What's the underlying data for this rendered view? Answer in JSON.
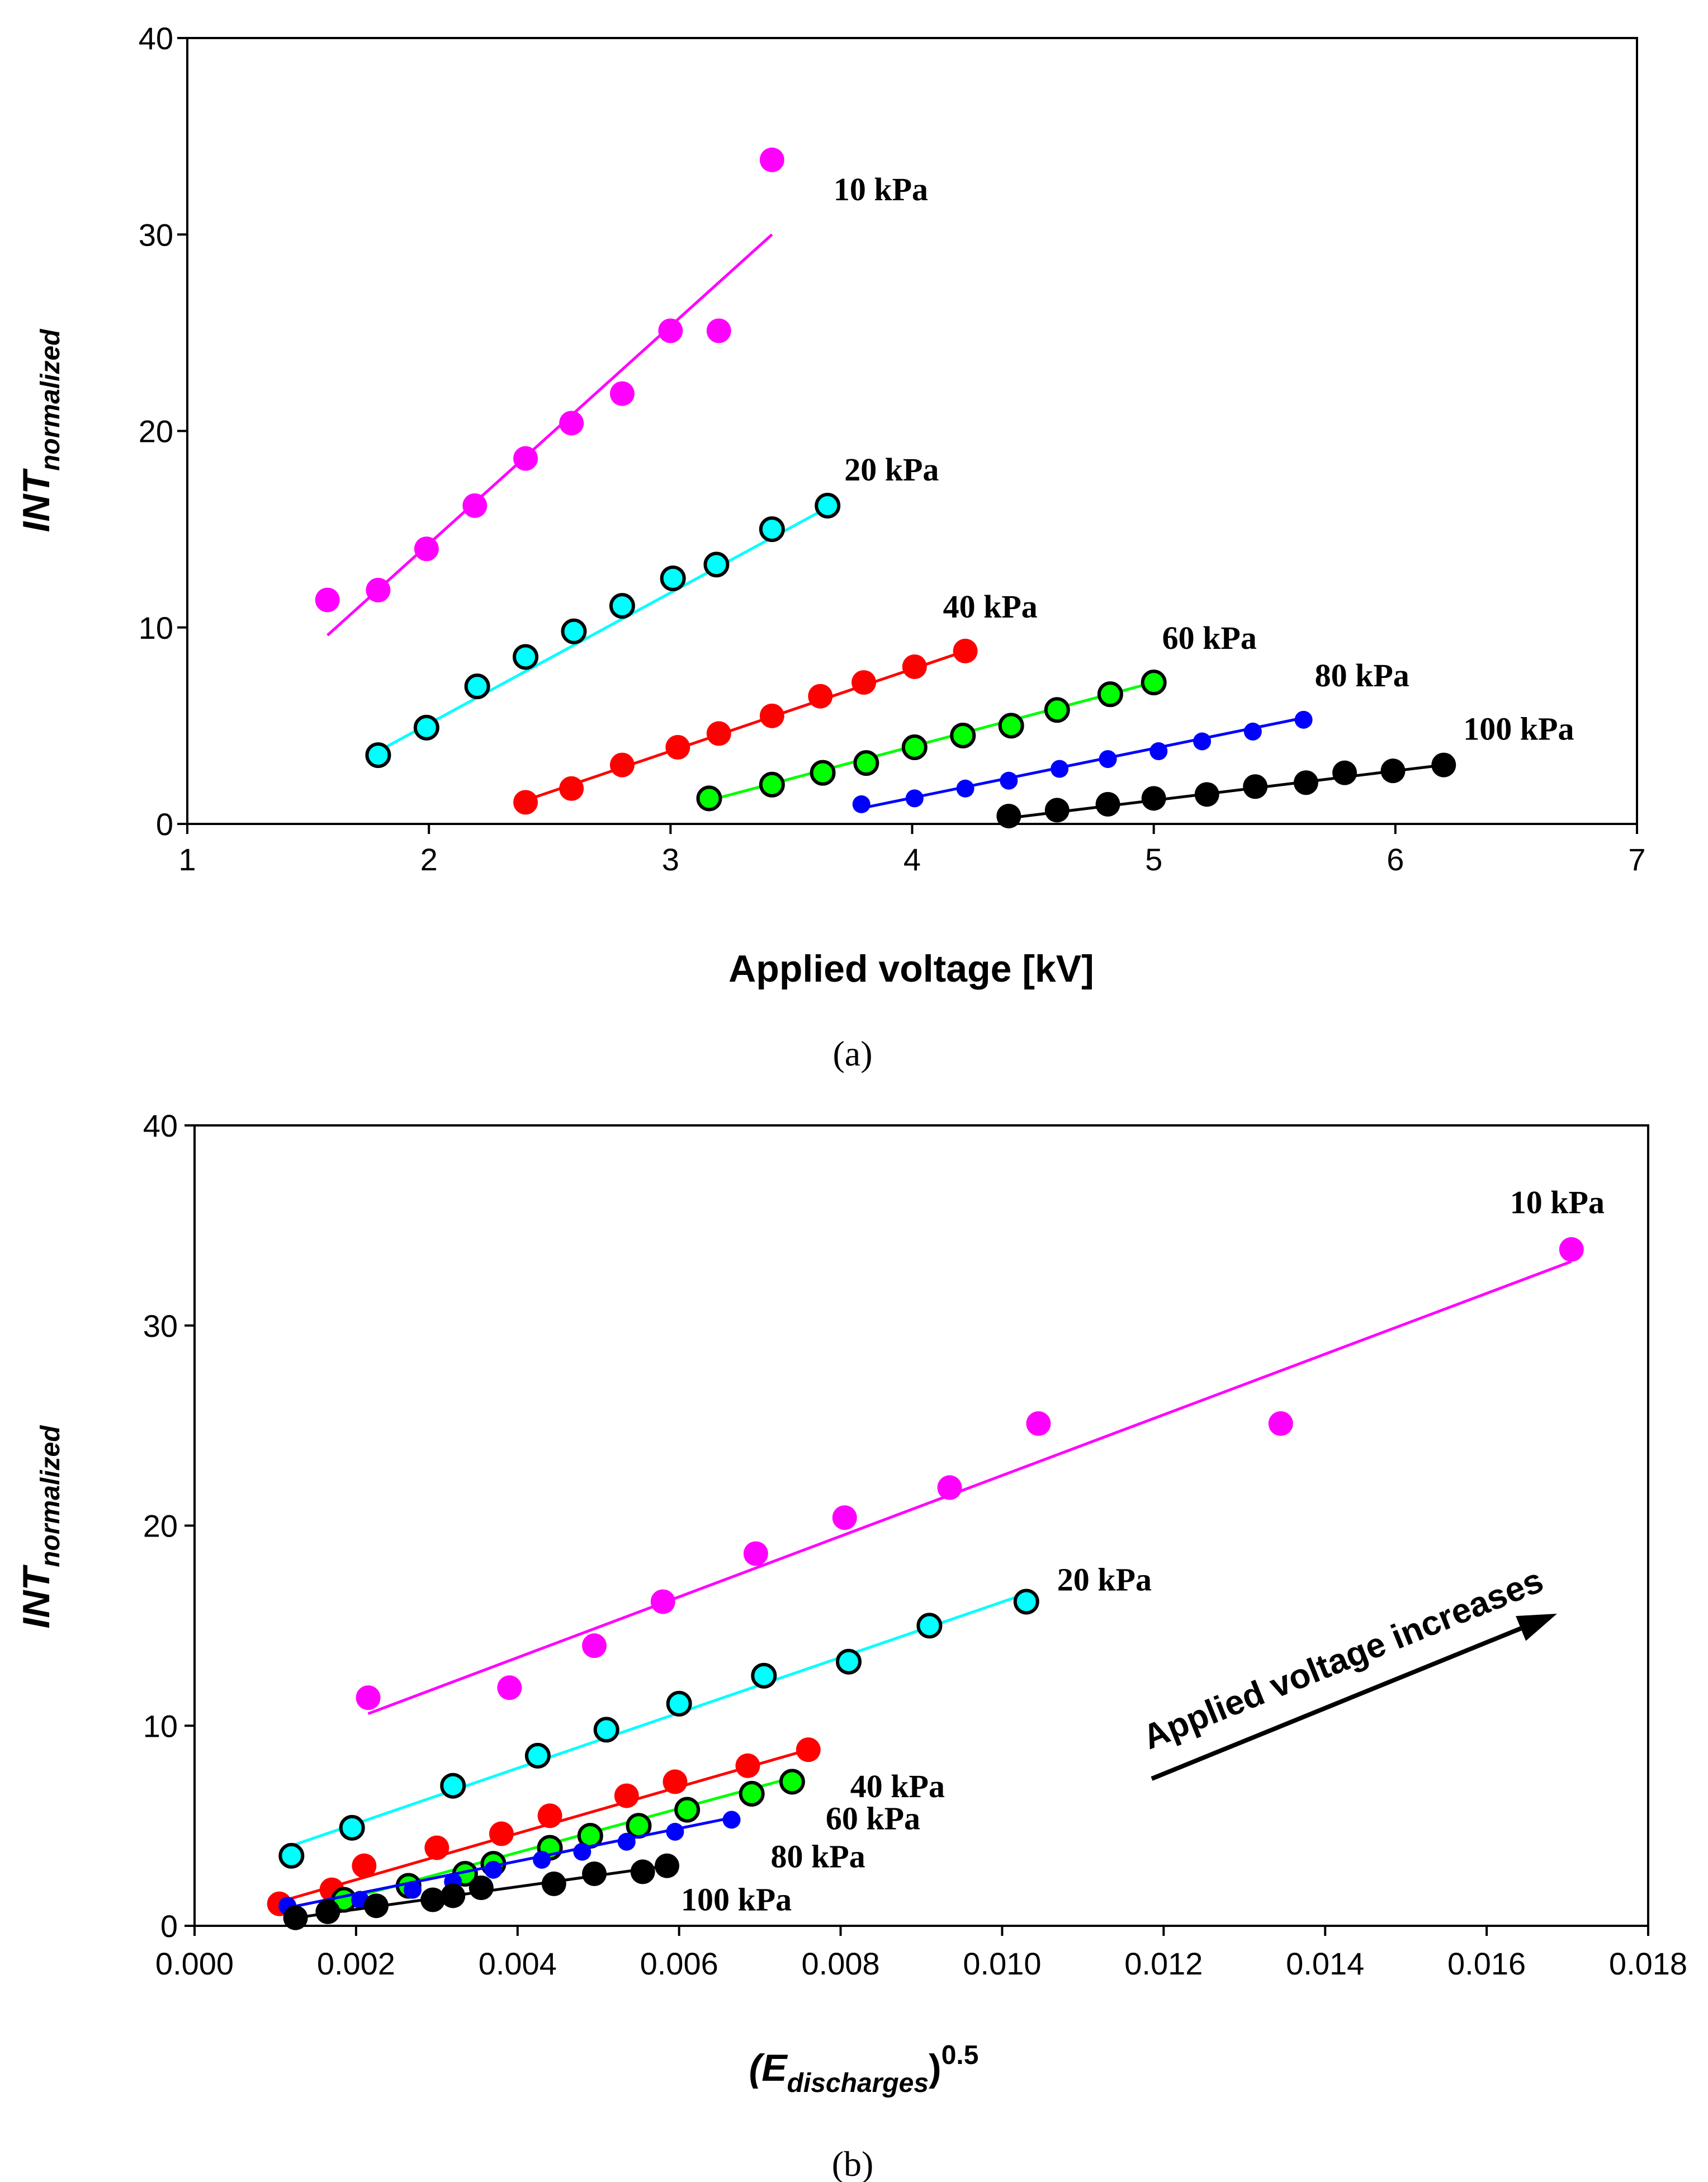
{
  "chart_data": [
    {
      "type": "scatter",
      "panel": "(a)",
      "xlabel": "Applied voltage [kV]",
      "ylabel": {
        "main": "INT",
        "sub": "normalized"
      },
      "xlim": [
        1,
        7
      ],
      "ylim": [
        0,
        40
      ],
      "xticks": [
        1,
        2,
        3,
        4,
        5,
        6,
        7
      ],
      "yticks": [
        0,
        10,
        20,
        30,
        40
      ],
      "grid": false,
      "series": [
        {
          "name": "10 kPa",
          "label": "10 kPa",
          "color": "#ff00ff",
          "marker": "filled",
          "x": [
            1.58,
            1.79,
            1.99,
            2.19,
            2.4,
            2.59,
            2.8,
            3.0,
            3.2,
            3.42
          ],
          "y": [
            11.4,
            11.9,
            14.0,
            16.2,
            18.6,
            20.4,
            21.9,
            25.1,
            25.1,
            33.8
          ],
          "fit": [
            [
              1.58,
              9.6
            ],
            [
              3.42,
              30.0
            ]
          ]
        },
        {
          "name": "20 kPa",
          "label": "20 kPa",
          "color": "#00ffff",
          "marker": "outlined",
          "x": [
            1.79,
            1.99,
            2.2,
            2.4,
            2.6,
            2.8,
            3.01,
            3.19,
            3.42,
            3.65
          ],
          "y": [
            3.5,
            4.9,
            7.0,
            8.5,
            9.8,
            11.1,
            12.5,
            13.2,
            15.0,
            16.2
          ],
          "fit": [
            [
              1.79,
              3.7
            ],
            [
              3.65,
              16.1
            ]
          ]
        },
        {
          "name": "40 kPa",
          "label": "40 kPa",
          "color": "#ff0000",
          "marker": "filled",
          "x": [
            2.4,
            2.59,
            2.8,
            3.03,
            3.2,
            3.42,
            3.62,
            3.8,
            4.01,
            4.22
          ],
          "y": [
            1.1,
            1.8,
            3.0,
            3.9,
            4.6,
            5.5,
            6.5,
            7.2,
            8.0,
            8.8
          ],
          "fit": [
            [
              2.4,
              1.2
            ],
            [
              4.22,
              8.8
            ]
          ]
        },
        {
          "name": "60 kPa",
          "label": "60 kPa",
          "color": "#00ff00",
          "marker": "outlined",
          "x": [
            3.16,
            3.42,
            3.63,
            3.81,
            4.01,
            4.21,
            4.41,
            4.6,
            4.82,
            5.0
          ],
          "y": [
            1.3,
            2.0,
            2.6,
            3.1,
            3.9,
            4.5,
            5.0,
            5.8,
            6.6,
            7.2
          ],
          "fit": [
            [
              3.16,
              1.2
            ],
            [
              5.0,
              7.2
            ]
          ]
        },
        {
          "name": "80 kPa",
          "label": "80 kPa",
          "color": "#0000ff",
          "marker": "filled-small",
          "x": [
            3.79,
            4.01,
            4.22,
            4.4,
            4.61,
            4.81,
            5.02,
            5.2,
            5.41,
            5.62
          ],
          "y": [
            1.0,
            1.3,
            1.8,
            2.2,
            2.8,
            3.3,
            3.7,
            4.2,
            4.7,
            5.3
          ],
          "fit": [
            [
              3.79,
              0.8
            ],
            [
              5.62,
              5.4
            ]
          ]
        },
        {
          "name": "100 kPa",
          "label": "100 kPa",
          "color": "#000000",
          "marker": "filled",
          "x": [
            4.4,
            4.6,
            4.81,
            5.0,
            5.22,
            5.42,
            5.63,
            5.79,
            5.99,
            6.2
          ],
          "y": [
            0.4,
            0.7,
            1.0,
            1.3,
            1.5,
            1.9,
            2.1,
            2.6,
            2.7,
            3.0
          ],
          "fit": [
            [
              4.4,
              0.3
            ],
            [
              6.2,
              3.0
            ]
          ]
        }
      ]
    },
    {
      "type": "scatter",
      "panel": "(b)",
      "xlabel": {
        "main": "(E",
        "sub": "discharges",
        "tail": ")",
        "sup": "0.5"
      },
      "ylabel": {
        "main": "INT",
        "sub": "normalized"
      },
      "xlim": [
        0.0,
        0.018
      ],
      "ylim": [
        0,
        40
      ],
      "xticks": [
        "0.000",
        "0.002",
        "0.004",
        "0.006",
        "0.008",
        "0.010",
        "0.012",
        "0.014",
        "0.016",
        "0.018"
      ],
      "yticks": [
        0,
        10,
        20,
        30,
        40
      ],
      "grid": false,
      "annotation": "Applied voltage increases",
      "series": [
        {
          "name": "10 kPa",
          "label": "10 kPa",
          "color": "#ff00ff",
          "marker": "filled",
          "x": [
            0.00215,
            0.0039,
            0.00495,
            0.0058,
            0.00695,
            0.00805,
            0.00935,
            0.01045,
            0.01345,
            0.01705
          ],
          "y": [
            11.4,
            11.9,
            14.0,
            16.2,
            18.6,
            20.4,
            21.9,
            25.1,
            25.1,
            33.8
          ],
          "fit": [
            [
              0.00215,
              10.6
            ],
            [
              0.01705,
              33.2
            ]
          ]
        },
        {
          "name": "20 kPa",
          "label": "20 kPa",
          "color": "#00ffff",
          "marker": "outlined",
          "x": [
            0.0012,
            0.00195,
            0.0032,
            0.00425,
            0.0051,
            0.006,
            0.00705,
            0.0081,
            0.0091,
            0.0103
          ],
          "y": [
            3.5,
            4.9,
            7.0,
            8.5,
            9.8,
            11.1,
            12.5,
            13.2,
            15.0,
            16.2
          ],
          "fit": [
            [
              0.0012,
              4.0
            ],
            [
              0.0103,
              16.6
            ]
          ]
        },
        {
          "name": "40 kPa",
          "label": "40 kPa",
          "color": "#ff0000",
          "marker": "filled",
          "x": [
            0.00105,
            0.0017,
            0.0021,
            0.003,
            0.0038,
            0.0044,
            0.00535,
            0.00595,
            0.00685,
            0.0076
          ],
          "y": [
            1.1,
            1.8,
            3.0,
            3.9,
            4.6,
            5.5,
            6.5,
            7.2,
            8.0,
            8.8
          ],
          "fit": [
            [
              0.00105,
              1.2
            ],
            [
              0.0076,
              8.8
            ]
          ]
        },
        {
          "name": "60 kPa",
          "label": "60 kPa",
          "color": "#00ff00",
          "marker": "outlined",
          "x": [
            0.00185,
            0.00265,
            0.00335,
            0.0037,
            0.0044,
            0.0049,
            0.0055,
            0.0061,
            0.0069,
            0.0074
          ],
          "y": [
            1.3,
            2.0,
            2.6,
            3.1,
            3.9,
            4.5,
            5.0,
            5.8,
            6.6,
            7.2
          ],
          "fit": [
            [
              0.00185,
              1.3
            ],
            [
              0.0074,
              7.4
            ]
          ]
        },
        {
          "name": "80 kPa",
          "label": "80 kPa",
          "color": "#0000ff",
          "marker": "filled-small",
          "x": [
            0.00115,
            0.00205,
            0.0027,
            0.0032,
            0.0037,
            0.0043,
            0.0048,
            0.00535,
            0.00595,
            0.00665
          ],
          "y": [
            1.0,
            1.3,
            1.8,
            2.2,
            2.8,
            3.3,
            3.7,
            4.2,
            4.7,
            5.3
          ],
          "fit": [
            [
              0.00115,
              0.9
            ],
            [
              0.00665,
              5.4
            ]
          ]
        },
        {
          "name": "100 kPa",
          "label": "100 kPa",
          "color": "#000000",
          "marker": "filled",
          "x": [
            0.00125,
            0.00165,
            0.00225,
            0.00295,
            0.0032,
            0.00355,
            0.00445,
            0.00495,
            0.00555,
            0.00585
          ],
          "y": [
            0.4,
            0.7,
            1.0,
            1.3,
            1.5,
            1.9,
            2.1,
            2.6,
            2.7,
            3.0
          ],
          "fit": [
            [
              0.00125,
              0.4
            ],
            [
              0.00585,
              3.0
            ]
          ]
        }
      ]
    }
  ]
}
